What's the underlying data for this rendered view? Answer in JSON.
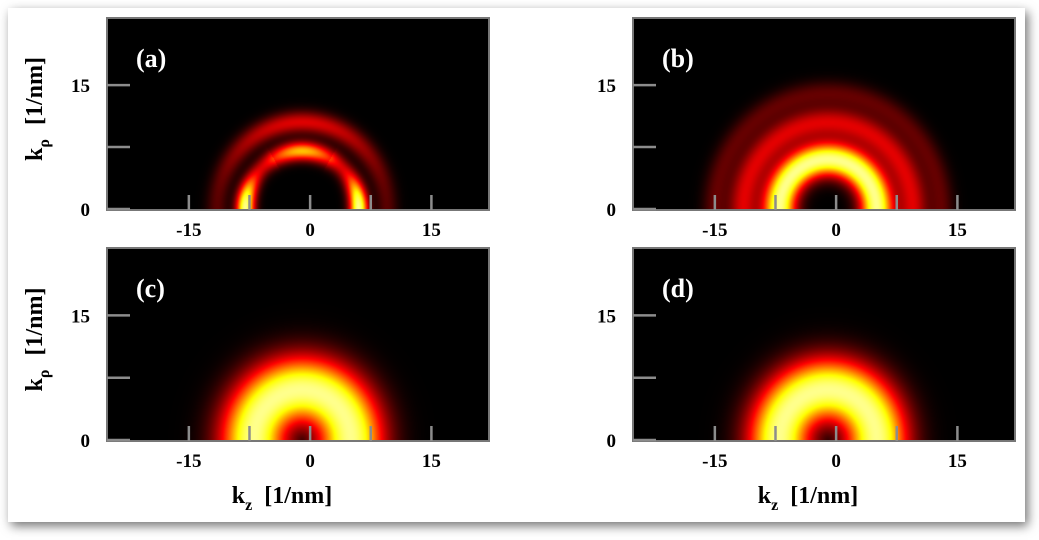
{
  "chart_data": {
    "type": "heatmap",
    "colormap": "hot (black-red-orange-yellow)",
    "background_color": "#000000",
    "shared_axes": {
      "xlabel_main": "k",
      "xlabel_sub": "z",
      "xlabel_unit": "[1/nm]",
      "ylabel_main": "k",
      "ylabel_sub": "ρ",
      "ylabel_unit": "[1/nm]",
      "xlim": [
        -25,
        22
      ],
      "ylim": [
        0,
        23
      ],
      "xticks": [
        -15,
        0,
        15
      ],
      "xtick_labels": [
        "-15",
        "0",
        "15"
      ],
      "xtick_minor": [
        -7.5,
        7.5
      ],
      "yticks": [
        0,
        15
      ],
      "ytick_labels": [
        "0",
        "15"
      ],
      "ytick_minor": [
        7.5
      ]
    },
    "panels": [
      {
        "label": "(a)",
        "features": [
          {
            "kind": "ring",
            "center_kz": -1,
            "radius": 7,
            "width": 1.1,
            "intensity": 1.0,
            "angular_pattern": "lobes"
          },
          {
            "kind": "ring",
            "center_kz": -1,
            "radius": 10.5,
            "width": 1.3,
            "intensity": 0.35,
            "angular_pattern": "arc"
          }
        ]
      },
      {
        "label": "(b)",
        "features": [
          {
            "kind": "ring",
            "center_kz": -1,
            "radius": 6,
            "width": 2.0,
            "intensity": 1.0
          },
          {
            "kind": "ring",
            "center_kz": -1,
            "radius": 10.5,
            "width": 1.8,
            "intensity": 0.35
          },
          {
            "kind": "ring",
            "center_kz": -1,
            "radius": 14,
            "width": 1.5,
            "intensity": 0.15
          }
        ]
      },
      {
        "label": "(c)",
        "features": [
          {
            "kind": "ring",
            "center_kz": -1,
            "radius": 6,
            "width": 4.0,
            "intensity": 1.0
          }
        ]
      },
      {
        "label": "(d)",
        "features": [
          {
            "kind": "ring",
            "center_kz": -1,
            "radius": 6,
            "width": 3.8,
            "intensity": 1.0
          }
        ]
      }
    ]
  }
}
